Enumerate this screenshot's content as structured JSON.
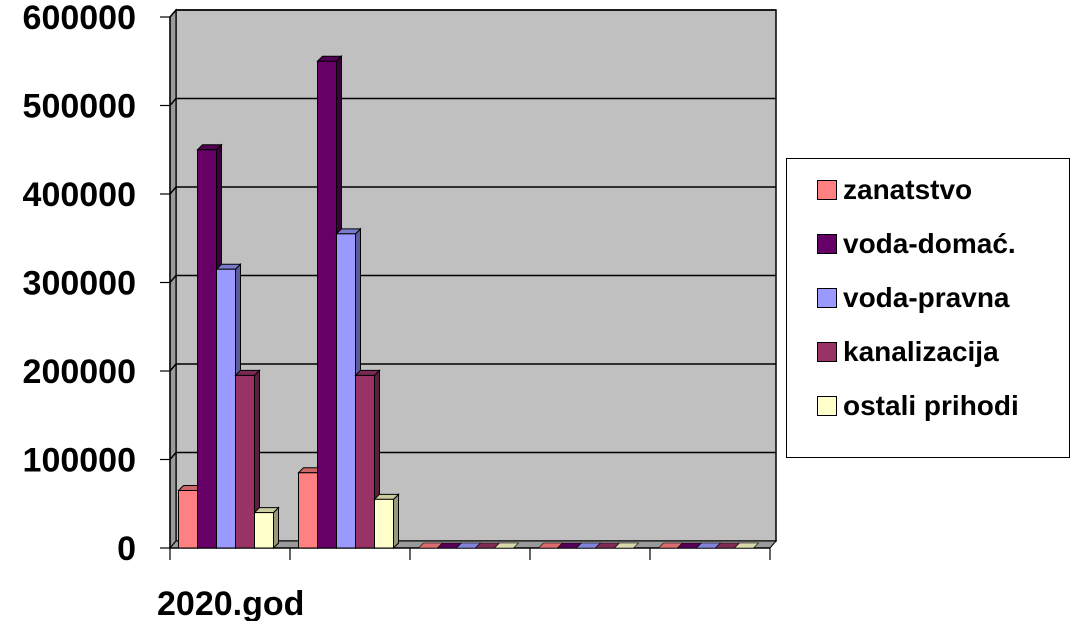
{
  "chart_data": {
    "type": "bar",
    "categories": [
      "2020.god",
      "",
      "",
      "",
      ""
    ],
    "series": [
      {
        "name": "zanatstvo",
        "color": "#FF8080",
        "values": [
          65000,
          85000,
          null,
          null,
          null
        ]
      },
      {
        "name": "voda-domać.",
        "color": "#660066",
        "values": [
          450000,
          550000,
          null,
          null,
          null
        ]
      },
      {
        "name": "voda-pravna",
        "color": "#9999FF",
        "values": [
          315000,
          355000,
          null,
          null,
          null
        ]
      },
      {
        "name": "kanalizacija",
        "color": "#993366",
        "values": [
          195000,
          195000,
          null,
          null,
          null
        ]
      },
      {
        "name": "ostali prihodi",
        "color": "#FFFFCC",
        "values": [
          40000,
          55000,
          null,
          null,
          null
        ]
      }
    ],
    "ylim": [
      0,
      600000
    ],
    "yticks": [
      "0",
      "100000",
      "200000",
      "300000",
      "400000",
      "500000",
      "600000"
    ],
    "grid": true,
    "plot_background": "#C0C0C0",
    "legend_position": "right"
  }
}
